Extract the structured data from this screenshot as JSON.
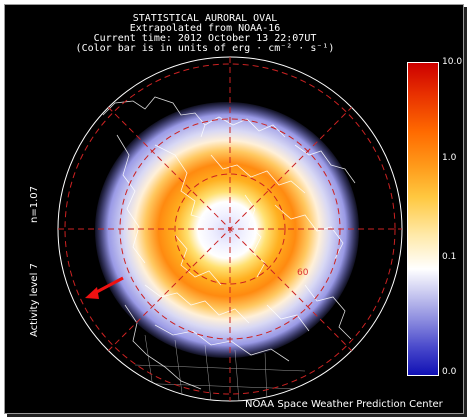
{
  "header": {
    "line1": "STATISTICAL AURORAL OVAL",
    "line2": "Extrapolated from NOAA-16",
    "line3": "Current time: 2012 October 13 22:07UT",
    "line4": "(Color bar is in units of erg · cm⁻² · s⁻¹)"
  },
  "side_labels": {
    "activity": "Activity level 7",
    "n": "n=1.07"
  },
  "colorbar": {
    "units": "erg · cm⁻² · s⁻¹",
    "ticks": [
      "10.0",
      "1.0",
      "0.1",
      "0.0"
    ]
  },
  "map": {
    "latitude_label": "60",
    "sun_arrow_icon": "red-arrow-icon"
  },
  "footer": "NOAA Space Weather Prediction Center",
  "colors": {
    "background": "#000000",
    "grid": "#cc2222",
    "oval_low": "#8080e0",
    "oval_high": "#ff6a00",
    "arrow": "#ee1111"
  }
}
